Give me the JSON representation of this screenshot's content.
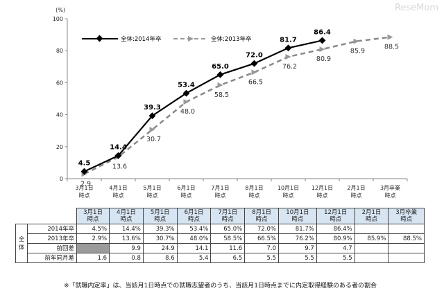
{
  "watermark": "ReseMom",
  "chart_data": {
    "type": "line",
    "unit_label": "(%)",
    "categories": [
      "3月1日\n時点",
      "4月1日\n時点",
      "5月1日\n時点",
      "6月1日\n時点",
      "7月1日\n時点",
      "8月1日\n時点",
      "10月1日\n時点",
      "12月1日\n時点",
      "2月1日\n時点",
      "3月卒業\n時点"
    ],
    "ylim": [
      0,
      100
    ],
    "yticks": [
      0,
      20,
      40,
      60,
      80,
      100
    ],
    "grid": false,
    "legend": "top-left",
    "series": [
      {
        "name": "全体:2014年卒",
        "style": "solid",
        "color": "#000000",
        "values": [
          4.5,
          14.4,
          39.3,
          53.4,
          65.0,
          72.0,
          81.7,
          86.4,
          null,
          null
        ],
        "labels": [
          "4.5",
          "14.4",
          "39.3",
          "53.4",
          "65.0",
          "72.0",
          "81.7",
          "86.4",
          null,
          null
        ]
      },
      {
        "name": "全体:2013年卒",
        "style": "dashed",
        "color": "#888888",
        "values": [
          2.9,
          13.6,
          30.7,
          48.0,
          58.5,
          66.5,
          76.2,
          80.9,
          85.9,
          88.5
        ],
        "labels": [
          "2.9",
          "13.6",
          "30.7",
          "48.0",
          "58.5",
          "66.5",
          "76.2",
          "80.9",
          "85.9",
          "88.5"
        ]
      }
    ]
  },
  "table": {
    "headers": [
      "3月1日\n時点",
      "4月1日\n時点",
      "5月1日\n時点",
      "6月1日\n時点",
      "7月1日\n時点",
      "8月1日\n時点",
      "10月1日\n時点",
      "12月1日\n時点",
      "2月1日\n時点",
      "3月卒業\n時点"
    ],
    "group_label": "全体",
    "rows": [
      {
        "label": "2014年卒",
        "cells": [
          "4.5%",
          "14.4%",
          "39.3%",
          "53.4%",
          "65.0%",
          "72.0%",
          "81.7%",
          "86.4%",
          "",
          ""
        ]
      },
      {
        "label": "2013年卒",
        "cells": [
          "2.9%",
          "13.6%",
          "30.7%",
          "48.0%",
          "58.5%",
          "66.5%",
          "76.2%",
          "80.9%",
          "85.9%",
          "88.5%"
        ]
      },
      {
        "label": "前回差",
        "cells": [
          "",
          "9.9",
          "24.9",
          "14.1",
          "11.6",
          "7.0",
          "9.7",
          "4.7",
          "",
          ""
        ]
      },
      {
        "label": "前年同月差",
        "cells": [
          "1.6",
          "0.8",
          "8.6",
          "5.4",
          "6.5",
          "5.5",
          "5.5",
          "5.5",
          "",
          ""
        ]
      }
    ]
  },
  "footnote": "※「就職内定率」は、当該月1日時点での就職志望者のうち、当該月1日時点までに内定取得経験のある者の割合"
}
